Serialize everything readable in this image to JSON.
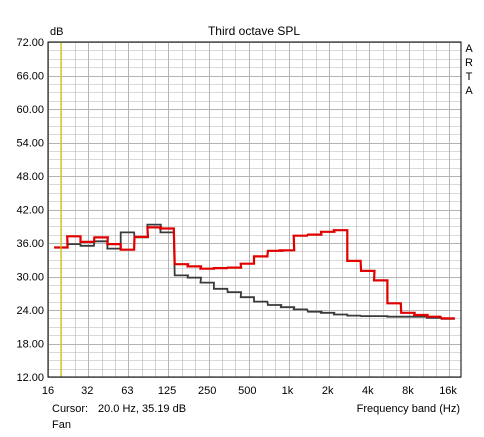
{
  "chart_data": {
    "type": "line",
    "title": "Third octave SPL",
    "ylabel": "dB",
    "xlabel": "Frequency band (Hz)",
    "side_label": [
      "A",
      "R",
      "T",
      "A"
    ],
    "ylim": [
      12,
      72
    ],
    "yticks": [
      "12.00",
      "18.00",
      "24.00",
      "30.00",
      "36.00",
      "42.00",
      "48.00",
      "54.00",
      "60.00",
      "66.00",
      "72.00"
    ],
    "xlim": [
      16,
      20000
    ],
    "xticks": [
      {
        "value": 16,
        "label": "16"
      },
      {
        "value": 31.5,
        "label": "32"
      },
      {
        "value": 63,
        "label": "63"
      },
      {
        "value": 125,
        "label": "125"
      },
      {
        "value": 250,
        "label": "250"
      },
      {
        "value": 500,
        "label": "500"
      },
      {
        "value": 1000,
        "label": "1k"
      },
      {
        "value": 2000,
        "label": "2k"
      },
      {
        "value": 4000,
        "label": "4k"
      },
      {
        "value": 8000,
        "label": "8k"
      },
      {
        "value": 16000,
        "label": "16k"
      }
    ],
    "x_scale": "log",
    "grid": true,
    "cursor_frequency": 20.0,
    "bands": [
      20,
      25,
      31.5,
      40,
      50,
      63,
      80,
      100,
      125,
      160,
      200,
      250,
      315,
      400,
      500,
      630,
      800,
      1000,
      1250,
      1600,
      2000,
      2500,
      3150,
      4000,
      5000,
      6300,
      8000,
      10000,
      12500,
      16000
    ],
    "series": [
      {
        "color": "#3a3a3a",
        "values": [
          35.2,
          35.8,
          35.5,
          36.3,
          35.0,
          37.9,
          37.0,
          39.3,
          37.9,
          30.2,
          29.8,
          28.9,
          27.8,
          27.2,
          26.3,
          25.5,
          24.9,
          24.5,
          24.1,
          23.7,
          23.5,
          23.2,
          23.0,
          22.9,
          22.9,
          22.8,
          22.8,
          22.8,
          22.6,
          22.4
        ]
      },
      {
        "color": "#e00000",
        "values": [
          35.2,
          37.2,
          36.2,
          37.0,
          35.8,
          34.8,
          37.1,
          38.8,
          38.6,
          32.2,
          31.8,
          31.4,
          31.5,
          31.6,
          32.3,
          33.6,
          34.6,
          34.7,
          37.3,
          37.5,
          38.0,
          38.3,
          32.8,
          31.0,
          29.3,
          25.2,
          23.5,
          23.1,
          22.8,
          22.5
        ]
      }
    ]
  },
  "footer": {
    "cursor_label": "Cursor:",
    "cursor_value": "20.0 Hz, 35.19 dB",
    "series_name": "Fan"
  },
  "colors": {
    "grid": "#b4b4b4",
    "cursor": "#d8c800",
    "frame": "#000000"
  }
}
